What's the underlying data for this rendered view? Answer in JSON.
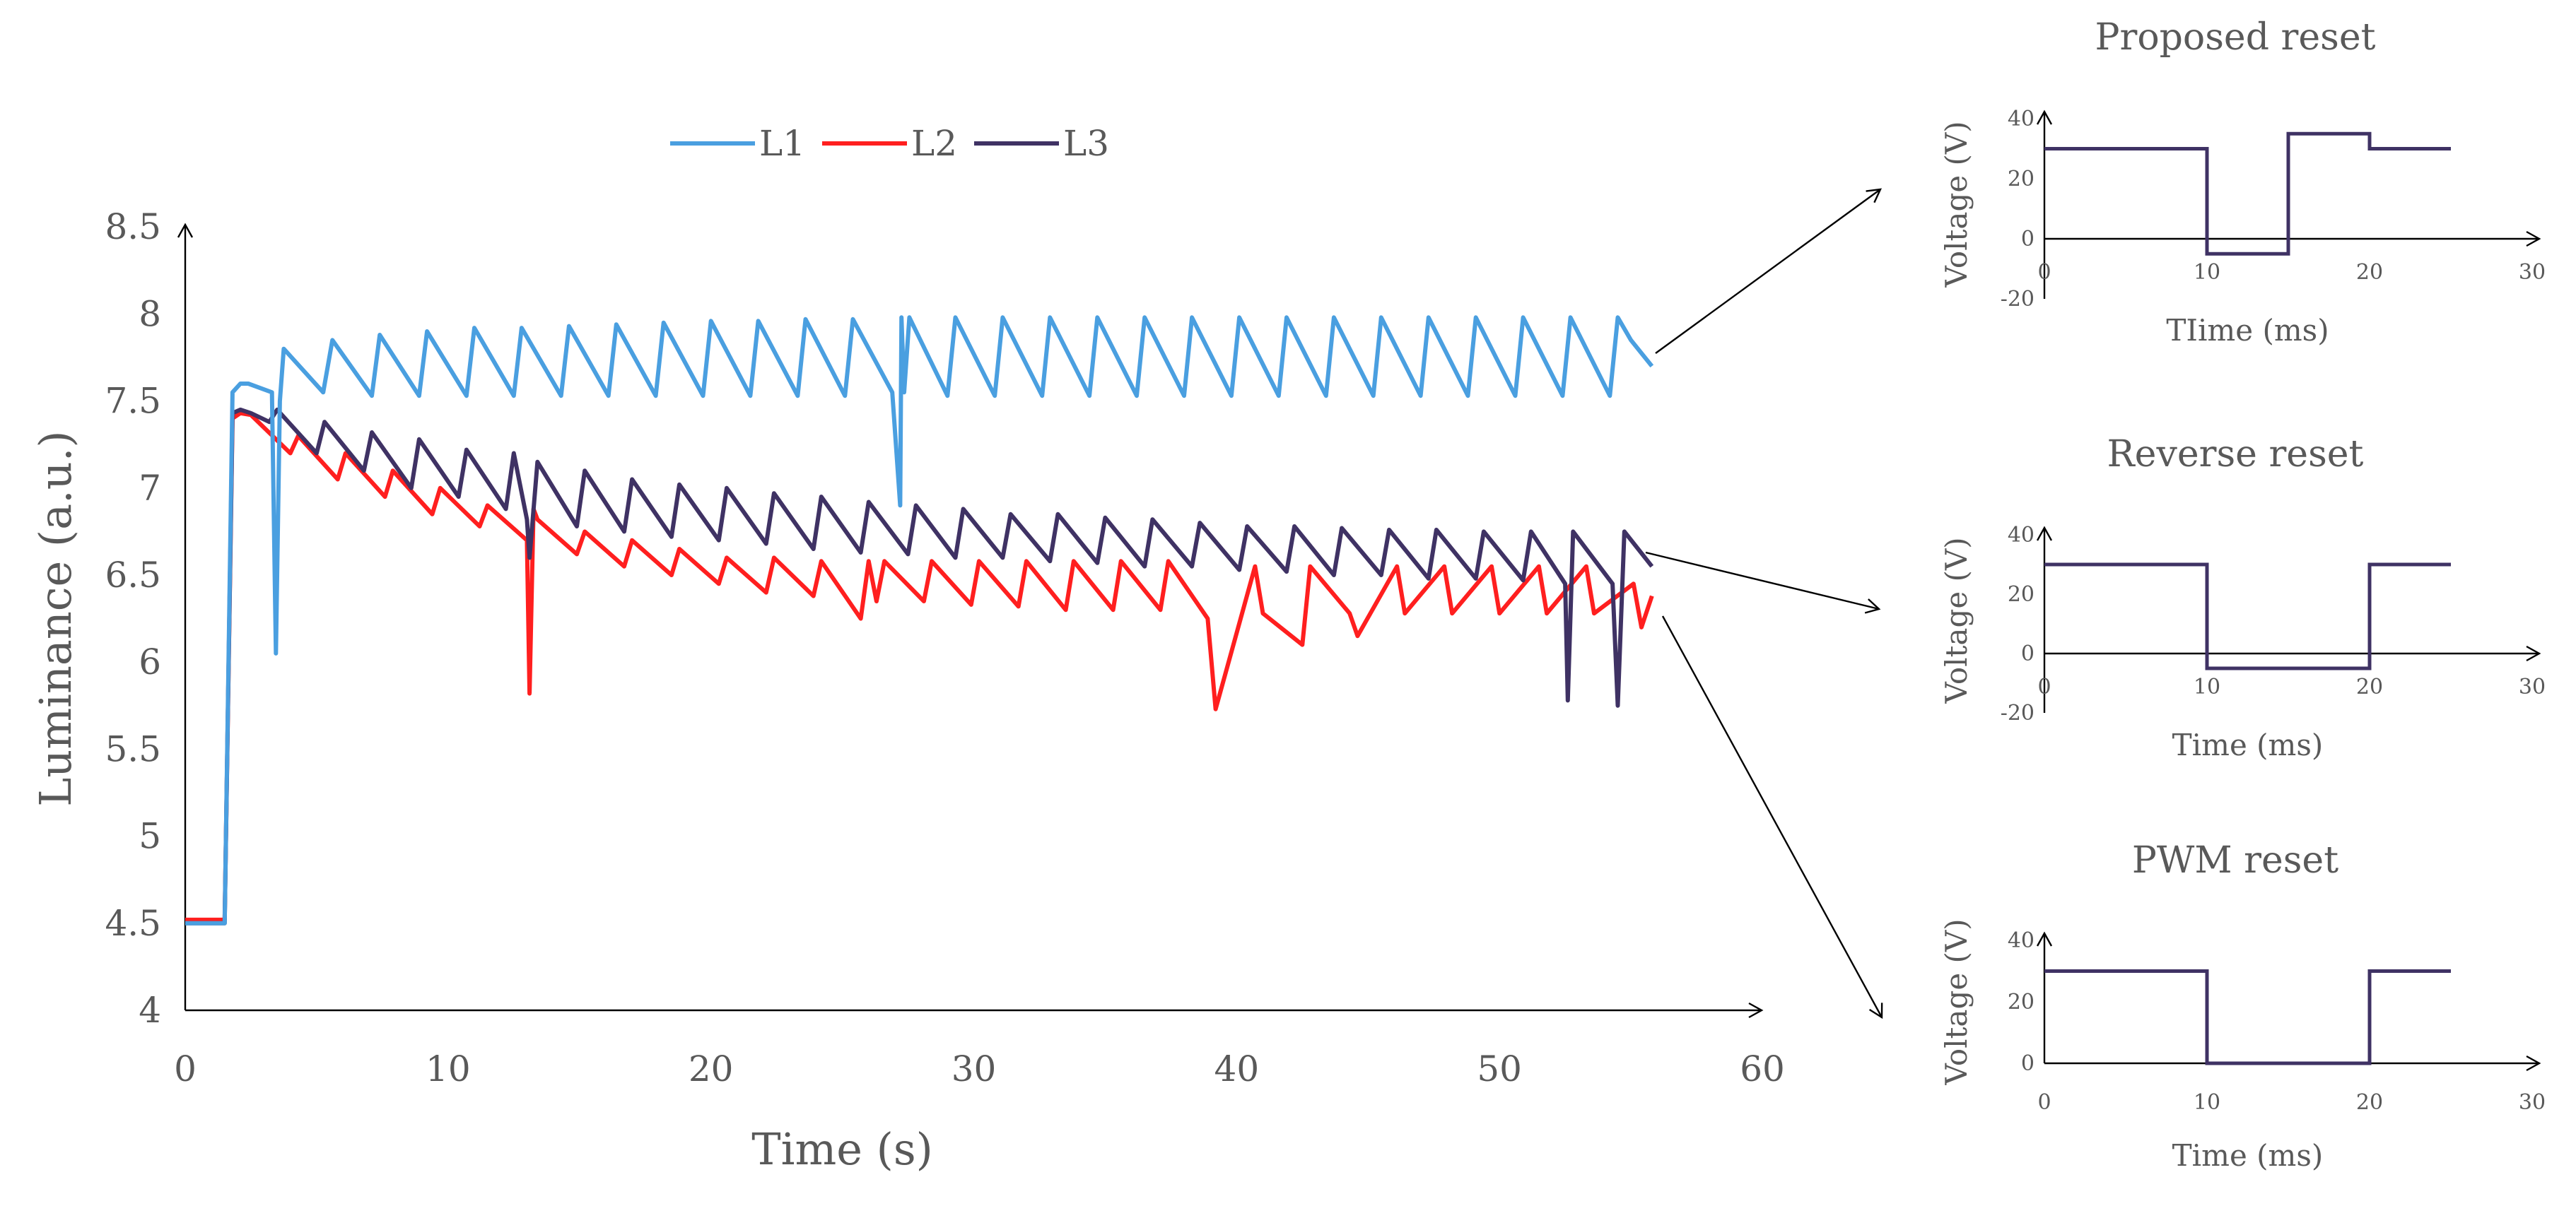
{
  "chart_data": [
    {
      "type": "line",
      "xlabel": "Time (s)",
      "ylabel": "Luminance (a.u.)",
      "xlim": [
        0,
        60
      ],
      "ylim": [
        4,
        8.5
      ],
      "x_ticks": [
        "0",
        "10",
        "20",
        "30",
        "40",
        "50",
        "60"
      ],
      "y_ticks": [
        "4",
        "4.5",
        "5",
        "5.5",
        "6",
        "6.5",
        "7",
        "7.5",
        "8",
        "8.5"
      ],
      "legend_position": "top-center",
      "series": [
        {
          "name": "L1",
          "color": "#4a9fe0",
          "x": [
            0,
            1.5,
            1.8,
            2.1,
            2.4,
            3.3,
            3.45,
            3.6,
            3.75,
            5.25,
            5.6,
            7.1,
            7.4,
            8.9,
            9.2,
            10.7,
            11.0,
            12.5,
            12.8,
            14.3,
            14.6,
            16.1,
            16.4,
            17.9,
            18.2,
            19.7,
            20.0,
            21.5,
            21.8,
            23.3,
            23.6,
            25.1,
            25.4,
            26.9,
            27.2,
            27.25,
            27.35,
            27.55,
            29.0,
            29.3,
            30.8,
            31.1,
            32.6,
            32.9,
            34.4,
            34.7,
            36.2,
            36.5,
            38.0,
            38.3,
            39.8,
            40.1,
            41.6,
            41.9,
            43.4,
            43.7,
            45.2,
            45.5,
            47.0,
            47.3,
            48.8,
            49.1,
            50.6,
            50.9,
            52.4,
            52.7,
            54.2,
            54.5,
            55.0,
            55.8
          ],
          "values": [
            4.5,
            4.5,
            7.55,
            7.6,
            7.6,
            7.55,
            6.05,
            7.5,
            7.8,
            7.55,
            7.85,
            7.53,
            7.88,
            7.53,
            7.9,
            7.53,
            7.92,
            7.53,
            7.92,
            7.53,
            7.93,
            7.53,
            7.94,
            7.53,
            7.95,
            7.53,
            7.96,
            7.53,
            7.96,
            7.53,
            7.97,
            7.53,
            7.97,
            7.55,
            6.9,
            7.98,
            7.55,
            7.98,
            7.53,
            7.98,
            7.53,
            7.98,
            7.53,
            7.98,
            7.53,
            7.98,
            7.53,
            7.98,
            7.53,
            7.98,
            7.53,
            7.98,
            7.53,
            7.98,
            7.53,
            7.98,
            7.53,
            7.98,
            7.53,
            7.98,
            7.53,
            7.98,
            7.53,
            7.98,
            7.53,
            7.98,
            7.53,
            7.98,
            7.85,
            7.7
          ]
        },
        {
          "name": "L2",
          "color": "#ff1f1f",
          "x": [
            0,
            1.5,
            1.8,
            2.1,
            2.5,
            4.0,
            4.3,
            5.8,
            6.1,
            7.6,
            7.9,
            9.4,
            9.7,
            11.2,
            11.5,
            13.0,
            13.1,
            13.25,
            13.4,
            14.9,
            15.2,
            16.7,
            17.0,
            18.5,
            18.8,
            20.3,
            20.6,
            22.1,
            22.4,
            23.9,
            24.2,
            25.7,
            26.0,
            26.3,
            26.6,
            28.1,
            28.4,
            29.9,
            30.2,
            31.7,
            32.0,
            33.5,
            33.8,
            35.3,
            35.6,
            37.1,
            37.4,
            38.9,
            39.2,
            40.7,
            41.0,
            42.5,
            42.8,
            44.3,
            44.6,
            46.1,
            46.4,
            47.9,
            48.2,
            49.7,
            50.0,
            51.5,
            51.8,
            53.3,
            53.6,
            55.1,
            55.4,
            55.8
          ],
          "values": [
            4.52,
            4.52,
            7.4,
            7.43,
            7.42,
            7.2,
            7.3,
            7.05,
            7.2,
            6.95,
            7.1,
            6.85,
            7.0,
            6.78,
            6.9,
            6.7,
            5.82,
            6.88,
            6.82,
            6.62,
            6.75,
            6.55,
            6.7,
            6.5,
            6.65,
            6.45,
            6.6,
            6.4,
            6.6,
            6.38,
            6.58,
            6.25,
            6.58,
            6.35,
            6.58,
            6.35,
            6.58,
            6.33,
            6.58,
            6.32,
            6.58,
            6.3,
            6.58,
            6.3,
            6.58,
            6.3,
            6.58,
            6.25,
            5.73,
            6.55,
            6.28,
            6.1,
            6.55,
            6.28,
            6.15,
            6.55,
            6.28,
            6.55,
            6.28,
            6.55,
            6.28,
            6.55,
            6.28,
            6.55,
            6.28,
            6.45,
            6.2,
            6.38
          ]
        },
        {
          "name": "L3",
          "color": "#3f3264",
          "x": [
            0,
            1.5,
            1.8,
            2.1,
            2.5,
            3.2,
            3.5,
            5.0,
            5.3,
            6.8,
            7.1,
            8.6,
            8.9,
            10.4,
            10.7,
            12.2,
            12.5,
            13.0,
            13.1,
            13.4,
            14.9,
            15.2,
            16.7,
            17.0,
            18.5,
            18.8,
            20.3,
            20.6,
            22.1,
            22.4,
            23.9,
            24.2,
            25.7,
            26.0,
            27.5,
            27.8,
            29.3,
            29.6,
            31.1,
            31.4,
            32.9,
            33.2,
            34.7,
            35.0,
            36.5,
            36.8,
            38.3,
            38.6,
            40.1,
            40.4,
            41.9,
            42.2,
            43.7,
            44.0,
            45.5,
            45.8,
            47.3,
            47.6,
            49.1,
            49.4,
            50.9,
            51.2,
            52.5,
            52.6,
            52.8,
            54.3,
            54.5,
            54.75,
            55.8
          ],
          "values": [
            4.5,
            4.5,
            7.43,
            7.45,
            7.43,
            7.38,
            7.45,
            7.2,
            7.38,
            7.1,
            7.32,
            7.0,
            7.28,
            6.95,
            7.22,
            6.88,
            7.2,
            6.82,
            6.6,
            7.15,
            6.78,
            7.1,
            6.75,
            7.05,
            6.72,
            7.02,
            6.7,
            7.0,
            6.68,
            6.97,
            6.65,
            6.95,
            6.63,
            6.92,
            6.62,
            6.9,
            6.6,
            6.88,
            6.6,
            6.85,
            6.58,
            6.85,
            6.57,
            6.83,
            6.55,
            6.82,
            6.55,
            6.8,
            6.53,
            6.78,
            6.52,
            6.78,
            6.5,
            6.77,
            6.5,
            6.76,
            6.48,
            6.76,
            6.48,
            6.75,
            6.47,
            6.75,
            6.45,
            5.78,
            6.75,
            6.45,
            5.75,
            6.75,
            6.55
          ]
        }
      ]
    },
    {
      "type": "line",
      "title": "Proposed reset",
      "xlabel": "TIime (ms)",
      "ylabel": "Voltage (V)",
      "xlim": [
        0,
        30
      ],
      "ylim": [
        -20,
        40
      ],
      "x_ticks": [
        "0",
        "10",
        "20",
        "30"
      ],
      "y_ticks": [
        "-20",
        "0",
        "20",
        "40"
      ],
      "color": "#3f3264",
      "x": [
        0,
        10,
        10,
        15,
        15,
        20,
        20,
        25
      ],
      "values": [
        30,
        30,
        -5,
        -5,
        35,
        35,
        30,
        30
      ]
    },
    {
      "type": "line",
      "title": "Reverse reset",
      "xlabel": "Time (ms)",
      "ylabel": "Voltage (V)",
      "xlim": [
        0,
        30
      ],
      "ylim": [
        -20,
        40
      ],
      "x_ticks": [
        "0",
        "10",
        "20",
        "30"
      ],
      "y_ticks": [
        "-20",
        "0",
        "20",
        "40"
      ],
      "color": "#3f3264",
      "x": [
        0,
        10,
        10,
        20,
        20,
        25
      ],
      "values": [
        30,
        30,
        -5,
        -5,
        30,
        30
      ]
    },
    {
      "type": "line",
      "title": "PWM reset",
      "xlabel": "Time (ms)",
      "ylabel": "Voltage (V)",
      "xlim": [
        0,
        30
      ],
      "ylim": [
        0,
        40
      ],
      "x_ticks": [
        "0",
        "10",
        "20",
        "30"
      ],
      "y_ticks": [
        "0",
        "20",
        "40"
      ],
      "color": "#3f3264",
      "x": [
        0,
        10,
        10,
        20,
        20,
        25
      ],
      "values": [
        30,
        30,
        0,
        0,
        30,
        30
      ]
    }
  ]
}
